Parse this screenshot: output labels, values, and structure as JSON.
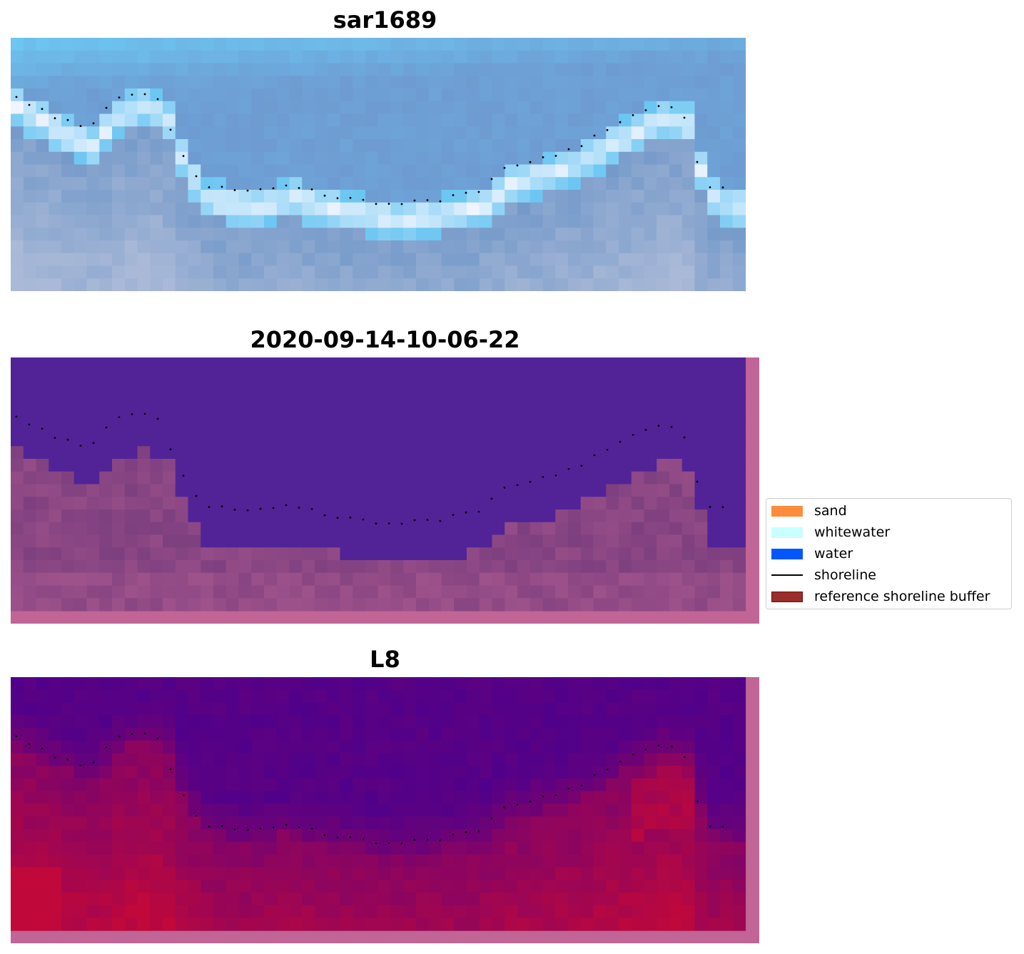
{
  "panels": [
    {
      "title": "sar1689"
    },
    {
      "title": "2020-09-14-10-06-22"
    },
    {
      "title": "L8"
    }
  ],
  "legend": {
    "items": [
      {
        "label": "sand",
        "kind": "patch",
        "color": "#ff8c3a"
      },
      {
        "label": "whitewater",
        "kind": "patch",
        "color": "#c8ffff"
      },
      {
        "label": "water",
        "kind": "patch",
        "color": "#0057ff"
      },
      {
        "label": "shoreline",
        "kind": "line",
        "color": "#000000"
      },
      {
        "label": "reference shoreline buffer",
        "kind": "patch",
        "color": "#9b2d2a",
        "edge": "#6b1212"
      }
    ]
  },
  "colors": {
    "rgb_water_light": "#6cc6f2",
    "rgb_water_mid": "#6e9bd1",
    "rgb_whitewater": "#f2f6ff",
    "class_water": "#522397",
    "class_land": "#7d3f7f",
    "class_border": "#c06596",
    "ndwi_low": "#4a008f",
    "ndwi_high": "#c0083a"
  }
}
